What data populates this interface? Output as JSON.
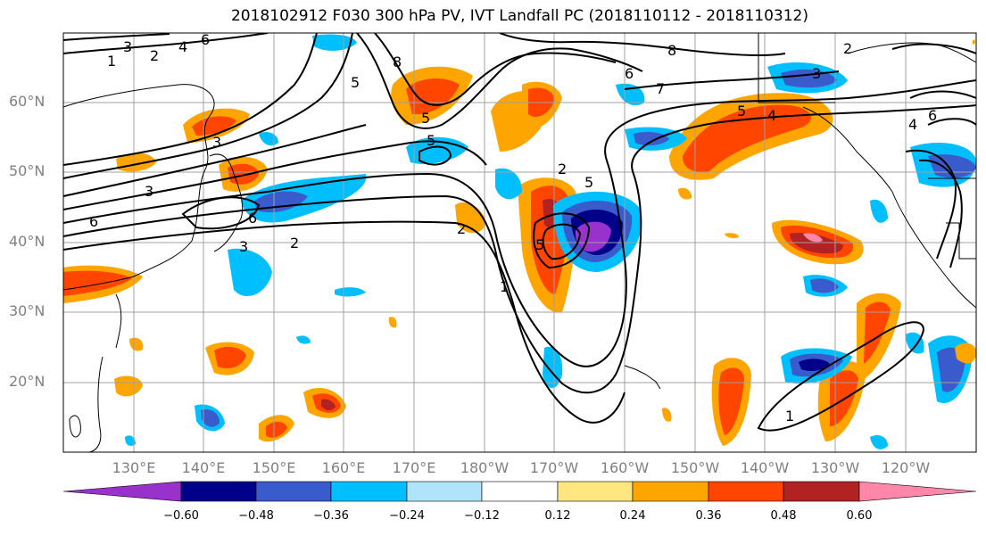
{
  "title": "2018102912 F030 300 hPa PV, IVT Landfall PC (2018110112 - 2018110312)",
  "lat_labels": [
    "60°N",
    "50°N",
    "40°N",
    "30°N",
    "20°N"
  ],
  "lon_labels": [
    "130°E",
    "140°E",
    "150°E",
    "160°E",
    "170°E",
    "180°W",
    "170°W",
    "160°W",
    "150°W",
    "140°W",
    "130°W",
    "120°W"
  ],
  "contour_labels": [
    "1",
    "2",
    "3",
    "4",
    "5",
    "6",
    "7",
    "8"
  ],
  "colorbar": {
    "ticks": [
      "−0.60",
      "−0.48",
      "−0.36",
      "−0.24",
      "−0.12",
      "0.12",
      "0.24",
      "0.36",
      "0.48",
      "0.60"
    ],
    "colors": [
      "#9932cc",
      "#00008b",
      "#3a5bcc",
      "#00bfff",
      "#afe4fb",
      "#ffffff",
      "#ffe680",
      "#ffa500",
      "#ff4500",
      "#b22222",
      "#ff88aa"
    ]
  }
}
